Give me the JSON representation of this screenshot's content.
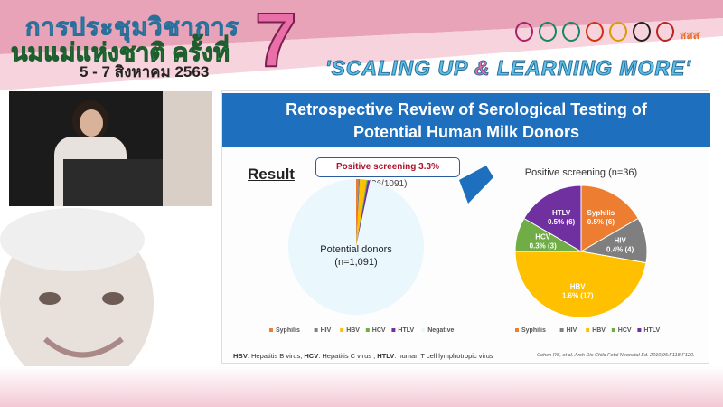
{
  "banner": {
    "title_line1": "การประชุมวิชาการ",
    "title_line2": "นมแม่แห่งชาติ ครั้งที่",
    "number": "7",
    "date": "5 - 7 สิงหาคม 2563",
    "slogan_a": "'SCALING UP ",
    "slogan_amp": "&",
    "slogan_b": " LEARNING MORE'",
    "logo_text": "สสส"
  },
  "slide": {
    "title_line1": "Retrospective Review of Serological Testing of",
    "title_line2": "Potential Human Milk Donors",
    "result_label": "Result",
    "callout_bold": "Positive screening 3.3%",
    "callout_rest": " (36/1091)",
    "footnote": [
      {
        "b": "HBV",
        "t": ": Hepatitis B virus; "
      },
      {
        "b": "HCV",
        "t": ": Hepatitis C virus ; "
      },
      {
        "b": "HTLV",
        "t": ": human T cell lymphotropic virus"
      }
    ],
    "citation": "Cohen RS, et al. Arch Dis Child Fetal Neonatal Ed. 2010;95:F118-F120."
  },
  "colors": {
    "Syphilis": "#ed7d31",
    "HIV": "#7f7f7f",
    "HBV": "#ffc000",
    "HCV": "#70ad47",
    "HTLV": "#7030a0",
    "Negative": "#eaf7fd",
    "titlebar": "#1f6fbf"
  },
  "chart_data": [
    {
      "type": "pie",
      "title": "",
      "center_label": [
        "Potential donors",
        "(n=1,091)"
      ],
      "categories": [
        "Syphilis",
        "HIV",
        "HBV",
        "HCV",
        "HTLV",
        "Negative"
      ],
      "values": [
        6,
        4,
        17,
        3,
        6,
        1055
      ],
      "legend": "bottom"
    },
    {
      "type": "pie",
      "title": "Positive screening (n=36)",
      "categories": [
        "Syphilis",
        "HIV",
        "HBV",
        "HCV",
        "HTLV"
      ],
      "values": [
        6,
        4,
        17,
        3,
        6
      ],
      "data_labels": [
        [
          "Syphilis",
          "0.5% (6)"
        ],
        [
          "HIV",
          "0.4% (4)"
        ],
        [
          "HBV",
          "1.6% (17)"
        ],
        [
          "HCV",
          "0.3% (3)"
        ],
        [
          "HTLV",
          "0.5% (6)"
        ]
      ],
      "legend": "bottom"
    }
  ]
}
